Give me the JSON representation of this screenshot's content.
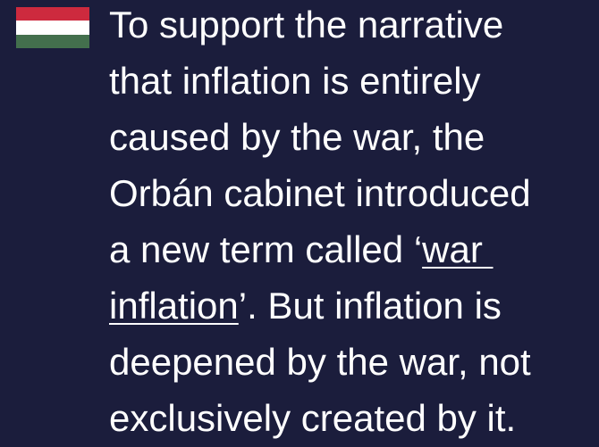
{
  "paragraph": {
    "lines": [
      [
        {
          "text": "To support the narrative"
        }
      ],
      [
        {
          "text": "that inflation is entirely"
        }
      ],
      [
        {
          "text": "caused by the war, the"
        }
      ],
      [
        {
          "text": "Orbán cabinet introduced"
        }
      ],
      [
        {
          "text": "a new term called ‘"
        },
        {
          "text": "war ",
          "link": true
        }
      ],
      [
        {
          "text": "inflation",
          "link": true
        },
        {
          "text": "’. But inflation is"
        }
      ],
      [
        {
          "text": "deepened by the war, not"
        }
      ],
      [
        {
          "text": "exclusively created by it."
        }
      ]
    ]
  }
}
